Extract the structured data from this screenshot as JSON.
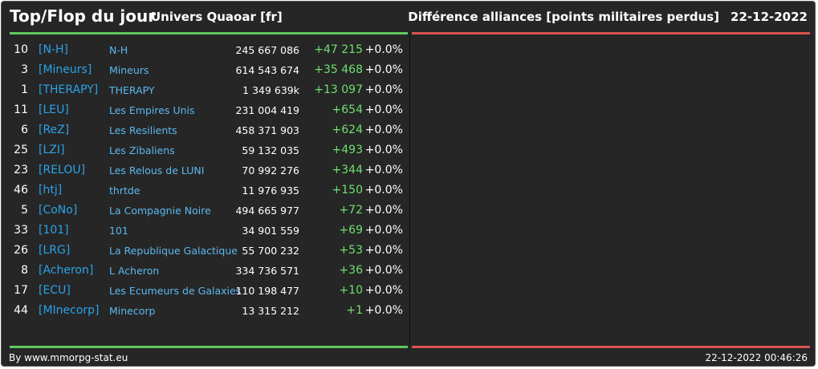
{
  "header": {
    "title": "Top/Flop du jour",
    "universe": "Univers Quaoar [fr]",
    "metric": "Différence alliances [points militaires perdus]",
    "date": "22-12-2022"
  },
  "colors": {
    "top": "#5ec95e",
    "flop": "#d9534f",
    "tag": "#2aa3e8",
    "name": "#5bb8f0",
    "diff": "#6ee06e"
  },
  "top_rows": [
    {
      "rank": "10",
      "tag": "[N-H]",
      "name": "N-H",
      "points": "245 667 086",
      "diff": "+47 215",
      "pct": "+0.0%"
    },
    {
      "rank": "3",
      "tag": "[Mineurs]",
      "name": "Mineurs",
      "points": "614 543 674",
      "diff": "+35 468",
      "pct": "+0.0%"
    },
    {
      "rank": "1",
      "tag": "[THERAPY]",
      "name": "THERAPY",
      "points": "1 349 639k",
      "diff": "+13 097",
      "pct": "+0.0%"
    },
    {
      "rank": "11",
      "tag": "[LEU]",
      "name": "Les Empires Unis",
      "points": "231 004 419",
      "diff": "+654",
      "pct": "+0.0%"
    },
    {
      "rank": "6",
      "tag": "[ReZ]",
      "name": "Les Resilients",
      "points": "458 371 903",
      "diff": "+624",
      "pct": "+0.0%"
    },
    {
      "rank": "25",
      "tag": "[LZI]",
      "name": "Les Zibaliens",
      "points": "59 132 035",
      "diff": "+493",
      "pct": "+0.0%"
    },
    {
      "rank": "23",
      "tag": "[RELOU]",
      "name": "Les Relous de LUNI",
      "points": "70 992 276",
      "diff": "+344",
      "pct": "+0.0%"
    },
    {
      "rank": "46",
      "tag": "[htj]",
      "name": "thrtde",
      "points": "11 976 935",
      "diff": "+150",
      "pct": "+0.0%"
    },
    {
      "rank": "5",
      "tag": "[CoNo]",
      "name": "La Compagnie Noire",
      "points": "494 665 977",
      "diff": "+72",
      "pct": "+0.0%"
    },
    {
      "rank": "33",
      "tag": "[101]",
      "name": "101",
      "points": "34 901 559",
      "diff": "+69",
      "pct": "+0.0%"
    },
    {
      "rank": "26",
      "tag": "[LRG]",
      "name": "La Republique Galactique",
      "points": "55 700 232",
      "diff": "+53",
      "pct": "+0.0%"
    },
    {
      "rank": "8",
      "tag": "[Acheron]",
      "name": "L Acheron",
      "points": "334 736 571",
      "diff": "+36",
      "pct": "+0.0%"
    },
    {
      "rank": "17",
      "tag": "[ECU]",
      "name": "Les Ecumeurs de Galaxies",
      "points": "110 198 477",
      "diff": "+10",
      "pct": "+0.0%"
    },
    {
      "rank": "44",
      "tag": "[MInecorp]",
      "name": "Minecorp",
      "points": "13 315 212",
      "diff": "+1",
      "pct": "+0.0%"
    }
  ],
  "footer": {
    "credit": "By www.mmorpg-stat.eu",
    "timestamp": "22-12-2022 00:46:26"
  }
}
